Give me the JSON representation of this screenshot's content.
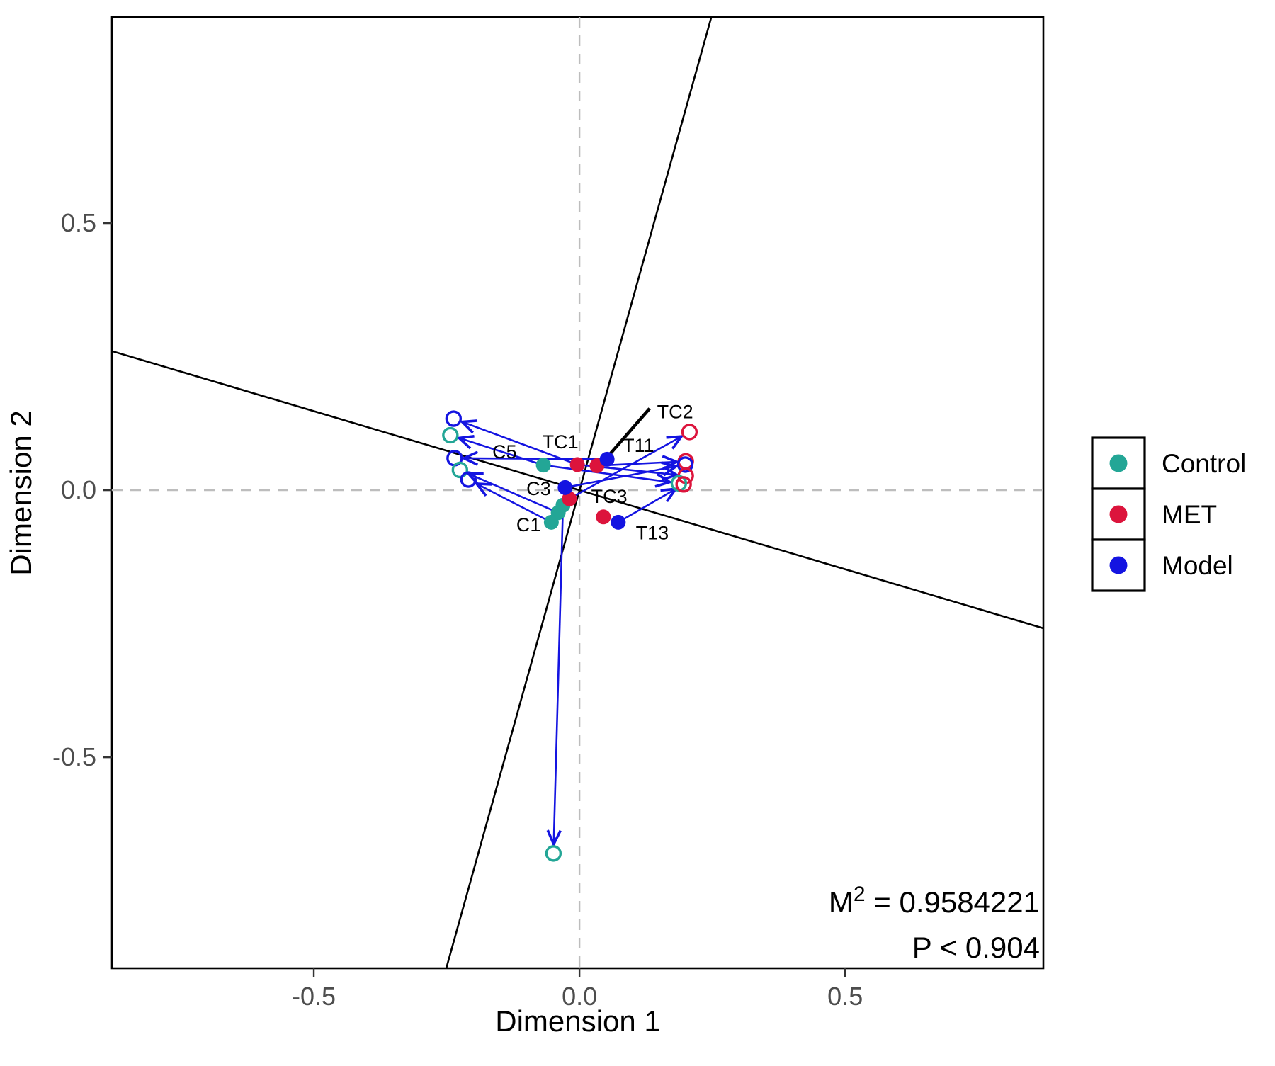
{
  "chart_data": {
    "type": "scatter",
    "subtype": "procrustes-errors",
    "title": "",
    "xlabel": "Dimension 1",
    "ylabel": "Dimension 2",
    "xlim": [
      -0.88,
      0.873
    ],
    "ylim": [
      -0.895,
      0.886
    ],
    "xticks": [
      -0.5,
      0.0,
      0.5
    ],
    "yticks": [
      -0.5,
      0.0,
      0.5
    ],
    "grid": "dashed crosshair at x=0 and y=0",
    "legend_position": "right",
    "background": "#ffffff",
    "panel_border_color": "#000000",
    "grid_color": "#bdbdbd",
    "tick_text_color": "#4d4d4d",
    "arrow_color": "#1414e1",
    "groups": [
      {
        "name": "Control",
        "color": "#23a696"
      },
      {
        "name": "MET",
        "color": "#dc143c"
      },
      {
        "name": "Model",
        "color": "#1414e1"
      }
    ],
    "solid_points": [
      {
        "x": -0.068,
        "y": 0.047,
        "group": "Control"
      },
      {
        "x": -0.031,
        "y": -0.028,
        "group": "Control"
      },
      {
        "x": -0.04,
        "y": -0.042,
        "group": "Control"
      },
      {
        "x": -0.053,
        "y": -0.06,
        "group": "Control"
      },
      {
        "x": -0.004,
        "y": 0.048,
        "group": "MET"
      },
      {
        "x": 0.033,
        "y": 0.046,
        "group": "MET"
      },
      {
        "x": -0.019,
        "y": -0.016,
        "group": "MET"
      },
      {
        "x": 0.045,
        "y": -0.05,
        "group": "MET"
      },
      {
        "x": 0.052,
        "y": 0.058,
        "group": "Model"
      },
      {
        "x": -0.027,
        "y": 0.005,
        "group": "Model"
      },
      {
        "x": 0.073,
        "y": -0.06,
        "group": "Model"
      }
    ],
    "open_points": [
      {
        "x": -0.237,
        "y": 0.134,
        "group": "Model"
      },
      {
        "x": -0.243,
        "y": 0.103,
        "group": "Control"
      },
      {
        "x": -0.235,
        "y": 0.06,
        "group": "Model"
      },
      {
        "x": -0.225,
        "y": 0.038,
        "group": "Control"
      },
      {
        "x": -0.209,
        "y": 0.02,
        "group": "Model"
      },
      {
        "x": 0.207,
        "y": 0.109,
        "group": "MET"
      },
      {
        "x": 0.2,
        "y": 0.054,
        "group": "MET"
      },
      {
        "x": 0.199,
        "y": 0.048,
        "group": "Model"
      },
      {
        "x": 0.2,
        "y": 0.027,
        "group": "MET"
      },
      {
        "x": 0.187,
        "y": 0.013,
        "group": "Control"
      },
      {
        "x": 0.196,
        "y": 0.011,
        "group": "MET"
      },
      {
        "x": -0.049,
        "y": -0.68,
        "group": "Control"
      }
    ],
    "arrows": [
      {
        "x1": -0.004,
        "y1": 0.048,
        "x2": -0.237,
        "y2": 0.134
      },
      {
        "x1": -0.068,
        "y1": 0.047,
        "x2": -0.243,
        "y2": 0.103
      },
      {
        "x1": 0.052,
        "y1": 0.058,
        "x2": -0.235,
        "y2": 0.06
      },
      {
        "x1": -0.04,
        "y1": -0.042,
        "x2": -0.225,
        "y2": 0.038
      },
      {
        "x1": -0.053,
        "y1": -0.06,
        "x2": -0.209,
        "y2": 0.02
      },
      {
        "x1": -0.019,
        "y1": -0.016,
        "x2": 0.207,
        "y2": 0.109
      },
      {
        "x1": 0.033,
        "y1": 0.046,
        "x2": 0.2,
        "y2": 0.054
      },
      {
        "x1": -0.027,
        "y1": 0.005,
        "x2": 0.199,
        "y2": 0.048
      },
      {
        "x1": -0.004,
        "y1": 0.048,
        "x2": 0.2,
        "y2": 0.027
      },
      {
        "x1": -0.068,
        "y1": 0.047,
        "x2": 0.187,
        "y2": 0.013
      },
      {
        "x1": 0.073,
        "y1": -0.06,
        "x2": 0.196,
        "y2": 0.011
      },
      {
        "x1": -0.031,
        "y1": -0.028,
        "x2": -0.049,
        "y2": -0.68
      }
    ],
    "rotation_lines": [
      {
        "slope": -0.296,
        "intercept": 0
      },
      {
        "slope": 3.57,
        "intercept": 0
      }
    ],
    "point_labels": [
      {
        "text": "C5",
        "x": -0.141,
        "y": 0.072
      },
      {
        "text": "TC1",
        "x": -0.036,
        "y": 0.09
      },
      {
        "text": "T11",
        "x": 0.111,
        "y": 0.084
      },
      {
        "text": "TC2",
        "x": 0.18,
        "y": 0.147
      },
      {
        "text": "C3",
        "x": -0.077,
        "y": 0.003
      },
      {
        "text": "TC3",
        "x": 0.056,
        "y": -0.012
      },
      {
        "text": "C1",
        "x": -0.096,
        "y": -0.065
      },
      {
        "text": "T13",
        "x": 0.137,
        "y": -0.08
      }
    ],
    "leader_line": {
      "x1": 0.132,
      "y1": 0.153,
      "x2": 0.041,
      "y2": 0.049
    },
    "stats": {
      "m2_base": "M",
      "m2_sup": "2",
      "m2_rest": " = 0.9584221",
      "p": "P < 0.904"
    }
  }
}
